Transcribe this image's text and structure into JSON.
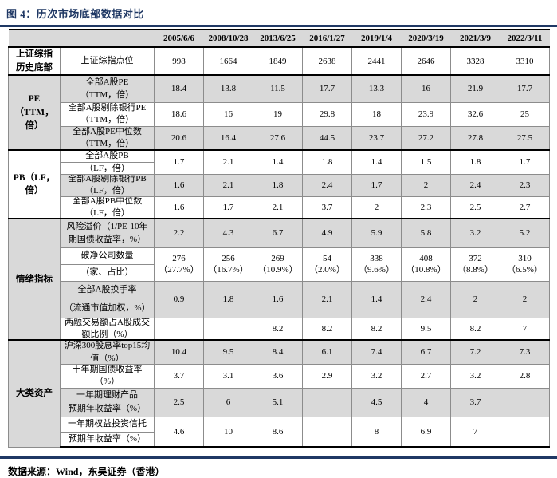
{
  "figure": {
    "title": "图 4：历次市场底部数据对比",
    "source": "数据来源：Wind，东吴证券（香港）"
  },
  "colors": {
    "accent_navy": "#1f3864",
    "stripe_gray": "#d9d9d9"
  },
  "table": {
    "date_headers": [
      "2005/6/6",
      "2008/10/28",
      "2013/6/25",
      "2016/1/27",
      "2019/1/4",
      "2020/3/19",
      "2021/3/9",
      "2022/3/11"
    ],
    "groups": [
      {
        "name_lines": [
          "上证综指",
          "历史底部"
        ],
        "rows": [
          {
            "label_lines": [
              "上证综指点位"
            ],
            "values": [
              "998",
              "1664",
              "1849",
              "2638",
              "2441",
              "2646",
              "3328",
              "3310"
            ]
          }
        ]
      },
      {
        "name_lines": [
          "PE",
          "（TTM，",
          "倍）"
        ],
        "rows": [
          {
            "label_lines": [
              "全部A股PE",
              "（TTM，倍）"
            ],
            "spread": true,
            "values": [
              "18.4",
              "13.8",
              "11.5",
              "17.7",
              "13.3",
              "16",
              "21.9",
              "17.7"
            ]
          },
          {
            "label_lines": [
              "全部A股剔除银行PE",
              "（TTM，倍）"
            ],
            "values": [
              "18.6",
              "16",
              "19",
              "29.8",
              "18",
              "23.9",
              "32.6",
              "25"
            ]
          },
          {
            "label_lines": [
              "全部A股PE中位数",
              "（TTM，倍）"
            ],
            "values": [
              "20.6",
              "16.4",
              "27.6",
              "44.5",
              "23.7",
              "27.2",
              "27.8",
              "27.5"
            ]
          }
        ]
      },
      {
        "name_lines": [
          "PB（LF，",
          "倍）"
        ],
        "rows": [
          {
            "label_lines": [
              "全部A股PB",
              "（LF，倍）"
            ],
            "divider": true,
            "values": [
              "1.7",
              "2.1",
              "1.4",
              "1.8",
              "1.4",
              "1.5",
              "1.8",
              "1.7"
            ]
          },
          {
            "label_lines": [
              "全部A股剔除银行PB",
              "（LF，倍）"
            ],
            "values": [
              "1.6",
              "2.1",
              "1.8",
              "2.4",
              "1.7",
              "2",
              "2.4",
              "2.3"
            ]
          },
          {
            "label_lines": [
              "全部A股PB中位数",
              "（LF，倍）"
            ],
            "values": [
              "1.6",
              "1.7",
              "2.1",
              "3.7",
              "2",
              "2.3",
              "2.5",
              "2.7"
            ]
          }
        ]
      },
      {
        "name_lines": [
          "情绪指标"
        ],
        "rows": [
          {
            "label_lines": [
              "风险溢价（1/PE-10年",
              "期国债收益率，%）"
            ],
            "values": [
              "2.2",
              "4.3",
              "6.7",
              "4.9",
              "5.9",
              "5.8",
              "3.2",
              "5.2"
            ]
          },
          {
            "label_lines": [
              "破净公司数量",
              "（家、占比）"
            ],
            "divider": true,
            "values": [
              "276\n（27.7%）",
              "256\n（16.7%）",
              "269\n（10.9%）",
              "54\n（2.0%）",
              "338\n（9.6%）",
              "408\n（10.8%）",
              "372\n（8.8%）",
              "310\n（6.5%）"
            ]
          },
          {
            "label_lines": [
              "全部A股换手率",
              "（流通市值加权，%）"
            ],
            "spread": true,
            "values": [
              "0.9",
              "1.8",
              "1.6",
              "2.1",
              "1.4",
              "2.4",
              "2",
              "2"
            ]
          },
          {
            "label_lines": [
              "两融交易额占A股成交",
              "额比例（%）"
            ],
            "values": [
              "",
              "",
              "8.2",
              "8.2",
              "8.2",
              "9.5",
              "8.2",
              "7"
            ]
          }
        ]
      },
      {
        "name_lines": [
          "大类资产"
        ],
        "rows": [
          {
            "label_lines": [
              "沪深300股息率top15均",
              "值（%）"
            ],
            "values": [
              "10.4",
              "9.5",
              "8.4",
              "6.1",
              "7.4",
              "6.7",
              "7.2",
              "7.3"
            ]
          },
          {
            "label_lines": [
              "十年期国债收益率",
              "（%）"
            ],
            "values": [
              "3.7",
              "3.1",
              "3.6",
              "2.9",
              "3.2",
              "2.7",
              "3.2",
              "2.8"
            ]
          },
          {
            "label_lines": [
              "一年期理财产品",
              "预期年收益率（%）"
            ],
            "spread": true,
            "values": [
              "2.5",
              "6",
              "5.1",
              "",
              "4.5",
              "4",
              "3.7",
              ""
            ]
          },
          {
            "label_lines": [
              "一年期权益投资信托",
              "预期年收益率（%）"
            ],
            "divider": true,
            "values": [
              "4.6",
              "10",
              "8.6",
              "",
              "8",
              "6.9",
              "7",
              ""
            ]
          }
        ]
      }
    ]
  }
}
